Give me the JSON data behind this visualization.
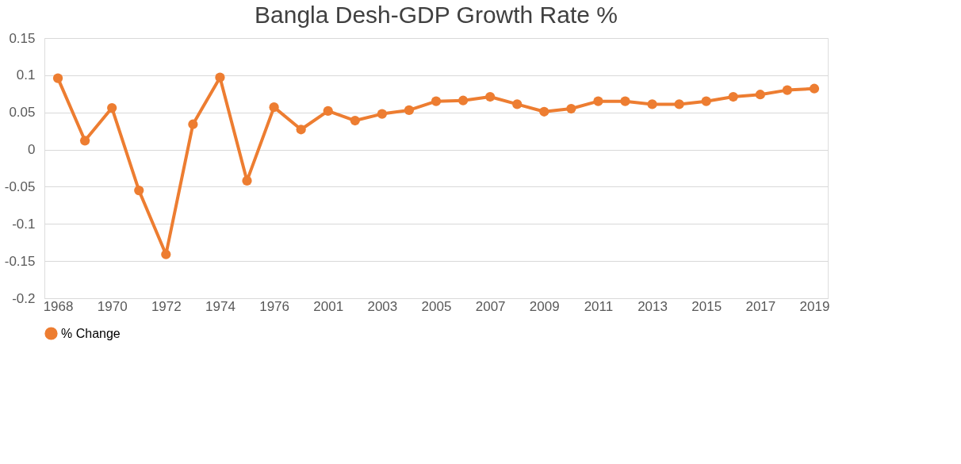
{
  "chart_data": {
    "type": "line",
    "title": "Bangla Desh-GDP Growth Rate %",
    "categories": [
      "1968",
      null,
      "1970",
      null,
      "1972",
      null,
      "1974",
      null,
      "1976",
      null,
      "2001",
      null,
      "2003",
      null,
      "2005",
      null,
      "2007",
      null,
      "2009",
      null,
      "2011",
      null,
      "2013",
      null,
      "2015",
      null,
      "2017",
      null,
      "2019"
    ],
    "series": [
      {
        "name": "% Change",
        "color": "#ed7d31",
        "values": [
          0.096,
          0.012,
          0.056,
          -0.055,
          -0.141,
          0.034,
          0.097,
          -0.042,
          0.057,
          0.027,
          0.052,
          0.039,
          0.048,
          0.053,
          0.065,
          0.066,
          0.071,
          0.061,
          0.051,
          0.055,
          0.065,
          0.065,
          0.061,
          0.061,
          0.065,
          0.071,
          0.074,
          0.08,
          0.082
        ]
      }
    ],
    "ylim": [
      -0.2,
      0.15
    ],
    "yticks": [
      -0.2,
      -0.15,
      -0.1,
      -0.05,
      0,
      0.05,
      0.1,
      0.15
    ],
    "grid": "y",
    "legend": "bottom",
    "marker": "circle",
    "line_style": "solid"
  }
}
